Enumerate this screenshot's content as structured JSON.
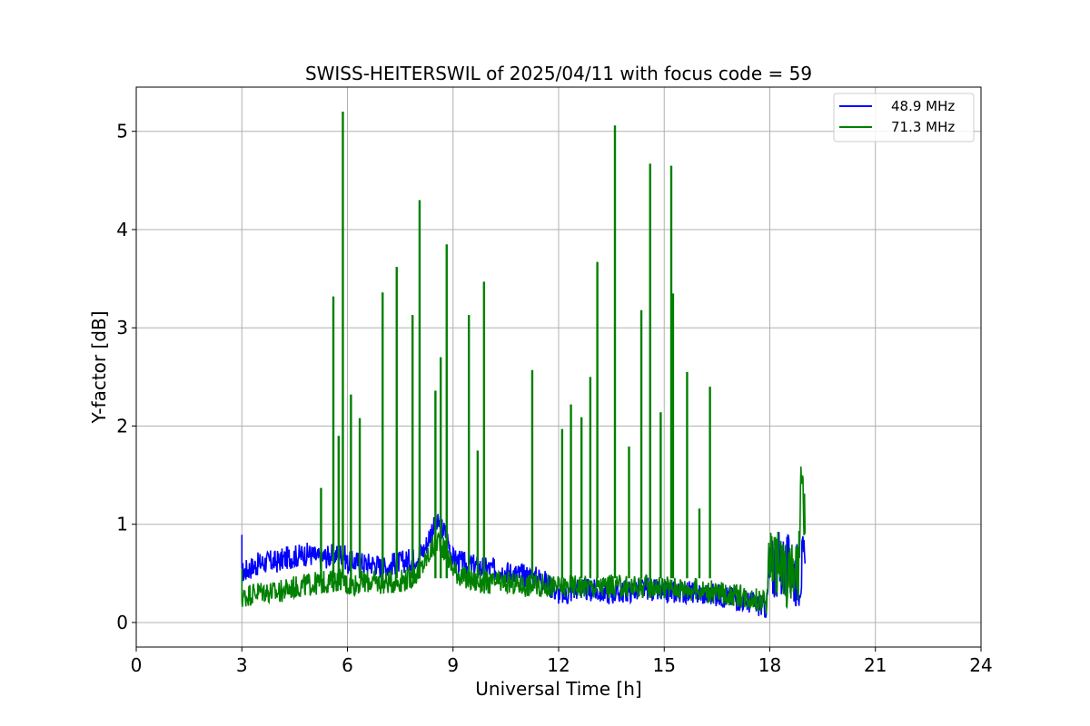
{
  "chart_data": {
    "type": "line",
    "title": "SWISS-HEITERSWIL of 2025/04/11 with focus code = 59",
    "xlabel": "Universal Time [h]",
    "ylabel": "Y-factor [dB]",
    "xlim": [
      0,
      24
    ],
    "ylim": [
      -0.25,
      5.45
    ],
    "xticks": [
      0,
      3,
      6,
      9,
      12,
      15,
      18,
      21,
      24
    ],
    "xtick_labels": [
      "0",
      "3",
      "6",
      "9",
      "12",
      "15",
      "18",
      "21",
      "24"
    ],
    "yticks": [
      0,
      1,
      2,
      3,
      4,
      5
    ],
    "ytick_labels": [
      "0",
      "1",
      "2",
      "3",
      "4",
      "5"
    ],
    "grid": true,
    "legend_position": "top-right",
    "series": [
      {
        "name": "48.9 MHz",
        "color": "#0000ff",
        "x": [
          3.0,
          3.0,
          3.2,
          3.5,
          3.8,
          4.0,
          4.3,
          4.6,
          4.9,
          5.2,
          5.5,
          5.8,
          5.9,
          6.0,
          6.2,
          6.5,
          6.8,
          7.0,
          7.3,
          7.6,
          7.9,
          8.2,
          8.4,
          8.6,
          8.8,
          9.0,
          9.3,
          9.6,
          10.0,
          10.5,
          11.0,
          11.5,
          12.0,
          12.2,
          12.5,
          13.0,
          13.5,
          14.0,
          14.5,
          15.0,
          15.5,
          16.0,
          16.5,
          17.0,
          17.5,
          17.9,
          18.0,
          18.2,
          18.5,
          18.8,
          19.0
        ],
        "y": [
          0.8,
          0.5,
          0.55,
          0.6,
          0.62,
          0.62,
          0.66,
          0.68,
          0.7,
          0.65,
          0.68,
          0.7,
          0.7,
          0.6,
          0.62,
          0.6,
          0.6,
          0.55,
          0.6,
          0.62,
          0.65,
          0.75,
          0.95,
          1.0,
          0.9,
          0.65,
          0.6,
          0.58,
          0.55,
          0.52,
          0.48,
          0.45,
          0.3,
          0.28,
          0.35,
          0.32,
          0.3,
          0.32,
          0.35,
          0.3,
          0.32,
          0.3,
          0.28,
          0.25,
          0.2,
          0.15,
          0.5,
          0.6,
          0.55,
          0.5,
          0.6
        ]
      },
      {
        "name": "71.3 MHz",
        "color": "#008000",
        "x": [
          3.0,
          3.0,
          3.3,
          3.6,
          4.0,
          4.4,
          4.8,
          5.2,
          5.6,
          5.8,
          6.0,
          6.3,
          6.6,
          7.0,
          7.4,
          7.8,
          8.1,
          8.4,
          8.6,
          8.8,
          9.0,
          9.3,
          9.6,
          10.0,
          10.5,
          11.0,
          11.5,
          12.0,
          12.5,
          13.0,
          13.5,
          14.0,
          14.5,
          15.0,
          15.5,
          16.0,
          16.5,
          17.0,
          17.5,
          17.9,
          18.0,
          18.2,
          18.5,
          18.8,
          18.9,
          19.0
        ],
        "y": [
          0.45,
          0.25,
          0.3,
          0.32,
          0.3,
          0.35,
          0.38,
          0.4,
          0.42,
          0.45,
          0.38,
          0.4,
          0.42,
          0.4,
          0.42,
          0.45,
          0.55,
          0.75,
          0.85,
          0.7,
          0.55,
          0.45,
          0.42,
          0.4,
          0.4,
          0.38,
          0.38,
          0.36,
          0.38,
          0.36,
          0.37,
          0.36,
          0.37,
          0.36,
          0.35,
          0.33,
          0.3,
          0.28,
          0.25,
          0.2,
          0.7,
          0.6,
          0.5,
          0.45,
          1.4,
          0.9
        ],
        "spikes": [
          {
            "x": 5.25,
            "y": 1.37
          },
          {
            "x": 5.6,
            "y": 3.32
          },
          {
            "x": 5.75,
            "y": 1.9
          },
          {
            "x": 5.87,
            "y": 5.2
          },
          {
            "x": 6.1,
            "y": 2.32
          },
          {
            "x": 6.35,
            "y": 2.08
          },
          {
            "x": 7.0,
            "y": 3.36
          },
          {
            "x": 7.4,
            "y": 3.62
          },
          {
            "x": 7.85,
            "y": 3.13
          },
          {
            "x": 8.05,
            "y": 4.3
          },
          {
            "x": 8.5,
            "y": 2.36
          },
          {
            "x": 8.65,
            "y": 2.7
          },
          {
            "x": 8.82,
            "y": 3.85
          },
          {
            "x": 9.45,
            "y": 3.13
          },
          {
            "x": 9.7,
            "y": 1.75
          },
          {
            "x": 9.88,
            "y": 3.47
          },
          {
            "x": 11.25,
            "y": 2.57
          },
          {
            "x": 12.1,
            "y": 1.97
          },
          {
            "x": 12.35,
            "y": 2.22
          },
          {
            "x": 12.65,
            "y": 2.09
          },
          {
            "x": 12.9,
            "y": 2.5
          },
          {
            "x": 13.1,
            "y": 3.67
          },
          {
            "x": 13.6,
            "y": 5.06
          },
          {
            "x": 14.0,
            "y": 1.79
          },
          {
            "x": 14.35,
            "y": 3.18
          },
          {
            "x": 14.6,
            "y": 4.67
          },
          {
            "x": 14.9,
            "y": 2.14
          },
          {
            "x": 15.2,
            "y": 4.65
          },
          {
            "x": 15.25,
            "y": 3.35
          },
          {
            "x": 15.65,
            "y": 2.55
          },
          {
            "x": 16.0,
            "y": 1.16
          },
          {
            "x": 16.3,
            "y": 2.4
          }
        ]
      }
    ]
  }
}
